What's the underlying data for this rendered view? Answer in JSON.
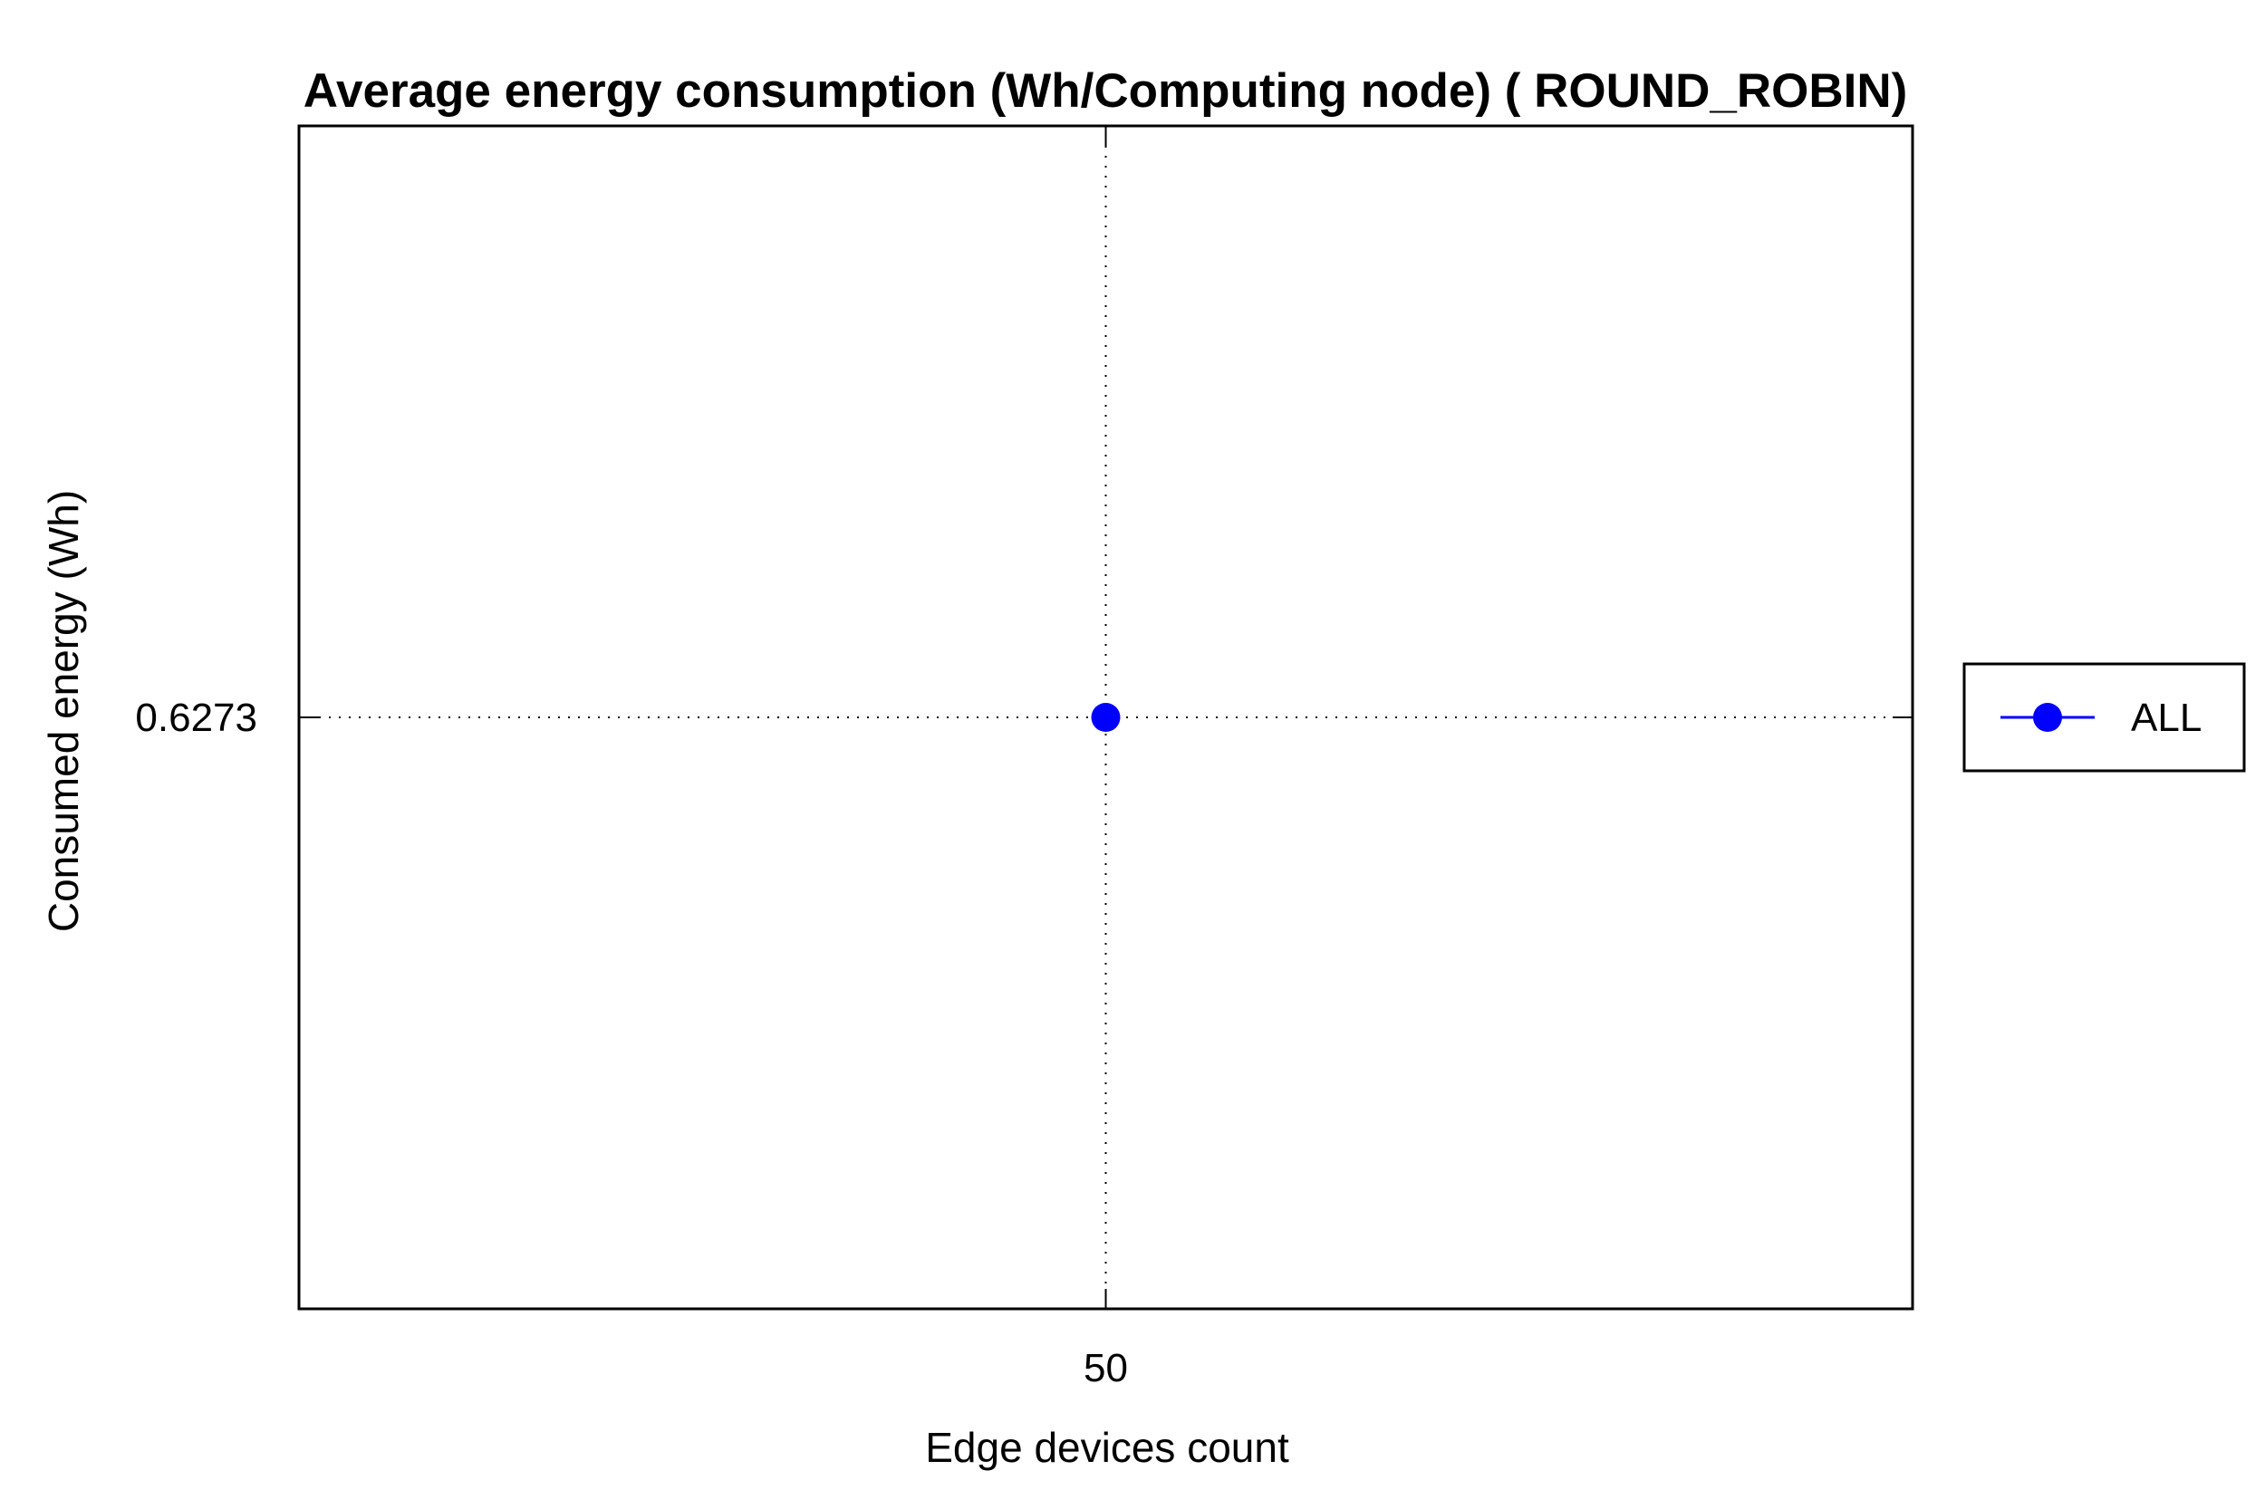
{
  "chart_data": {
    "type": "line",
    "title": "Average energy consumption (Wh/Computing node) ( ROUND_ROBIN)",
    "xlabel": "Edge devices count",
    "ylabel": "Consumed energy (Wh)",
    "x_ticks": [
      "50"
    ],
    "y_ticks": [
      "0.6273"
    ],
    "grid": true,
    "grid_style": "dotted",
    "legend_position": "right",
    "series": [
      {
        "name": "ALL",
        "color": "#0000ff",
        "marker": "circle",
        "x": [
          50
        ],
        "y": [
          0.6273
        ]
      }
    ]
  }
}
